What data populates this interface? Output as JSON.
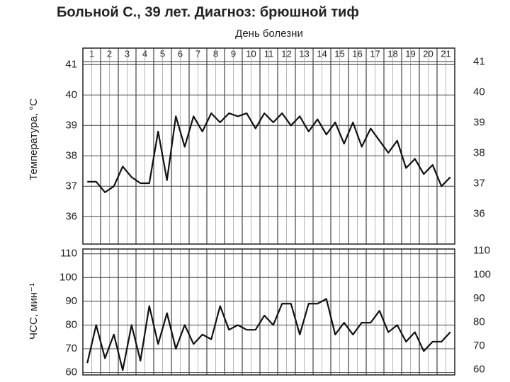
{
  "chart_data": [
    {
      "type": "line",
      "title": "Больной С., 39 лет. Диагноз: брюшной тиф",
      "x_label": "День болезни",
      "days": [
        1,
        2,
        3,
        4,
        5,
        6,
        7,
        8,
        9,
        10,
        11,
        12,
        13,
        14,
        15,
        16,
        17,
        18,
        19,
        20,
        21
      ],
      "y_label": "Температура, °С",
      "color": "#111",
      "values": [
        37.15,
        37.15,
        36.8,
        37.0,
        37.65,
        37.3,
        37.1,
        37.1,
        38.8,
        37.2,
        39.3,
        38.3,
        39.3,
        38.8,
        39.4,
        39.1,
        39.4,
        39.3,
        39.4,
        38.9,
        39.4,
        39.1,
        39.4,
        39.0,
        39.3,
        38.8,
        39.2,
        38.7,
        39.1,
        38.4,
        39.1,
        38.3,
        38.9,
        38.5,
        38.1,
        38.5,
        37.6,
        37.9,
        37.4,
        37.7,
        37.0,
        37.3
      ],
      "ylim": [
        35.1,
        41.1
      ],
      "yticks": [
        36,
        37,
        38,
        39,
        40,
        41
      ],
      "grid": true
    },
    {
      "type": "line",
      "y_label": "ЧСС, мин⁻¹",
      "color": "#111",
      "values": [
        64,
        80,
        66,
        76,
        61,
        80,
        65,
        88,
        72,
        85,
        70,
        80,
        72,
        76,
        74,
        88,
        78,
        80,
        78,
        78,
        84,
        80,
        89,
        89,
        76,
        89,
        89,
        91,
        76,
        81,
        76,
        81,
        81,
        86,
        77,
        80,
        73,
        77,
        69,
        73,
        73,
        77
      ],
      "ylim": [
        59,
        112
      ],
      "yticks": [
        60,
        70,
        80,
        90,
        100,
        110
      ],
      "grid": true
    }
  ]
}
